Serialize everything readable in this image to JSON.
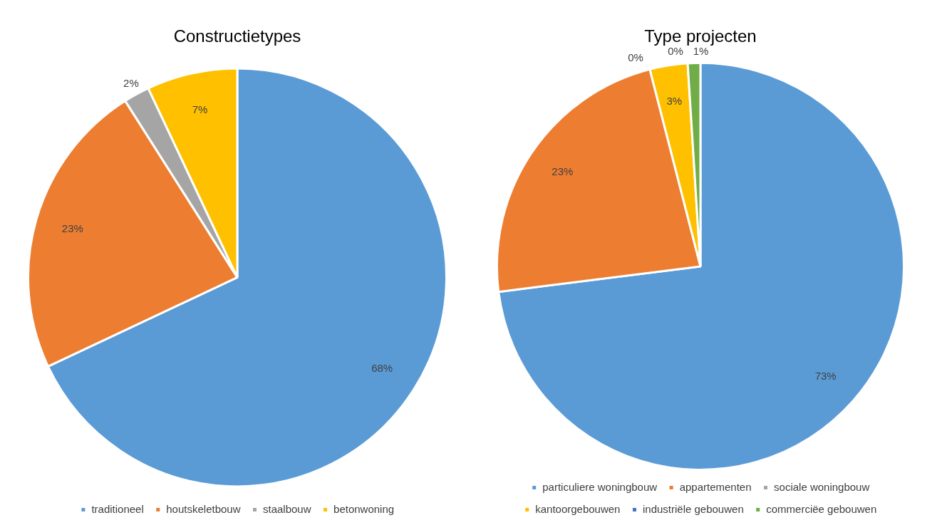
{
  "chart_data": [
    {
      "type": "pie",
      "title": "Constructietypes",
      "categories": [
        "traditioneel",
        "houtskeletbouw",
        "staalbouw",
        "betonwoning"
      ],
      "values": [
        68,
        23,
        2,
        7
      ],
      "colors": [
        "#5b9bd5",
        "#ed7d31",
        "#a5a5a5",
        "#ffc000"
      ],
      "value_labels": [
        "68%",
        "23%",
        "2%",
        "7%"
      ],
      "legend": "bottom"
    },
    {
      "type": "pie",
      "title": "Type projecten",
      "categories": [
        "particuliere woningbouw",
        "appartementen",
        "sociale woningbouw",
        "kantoorgebouwen",
        "industriële gebouwen",
        "commerciëe gebouwen"
      ],
      "values": [
        73,
        23,
        0,
        3,
        0,
        1
      ],
      "colors": [
        "#5b9bd5",
        "#ed7d31",
        "#a5a5a5",
        "#ffc000",
        "#4472c4",
        "#70ad47"
      ],
      "value_labels": [
        "73%",
        "23%",
        "0%",
        "3%",
        "0%",
        "1%"
      ],
      "legend": "bottom"
    }
  ]
}
